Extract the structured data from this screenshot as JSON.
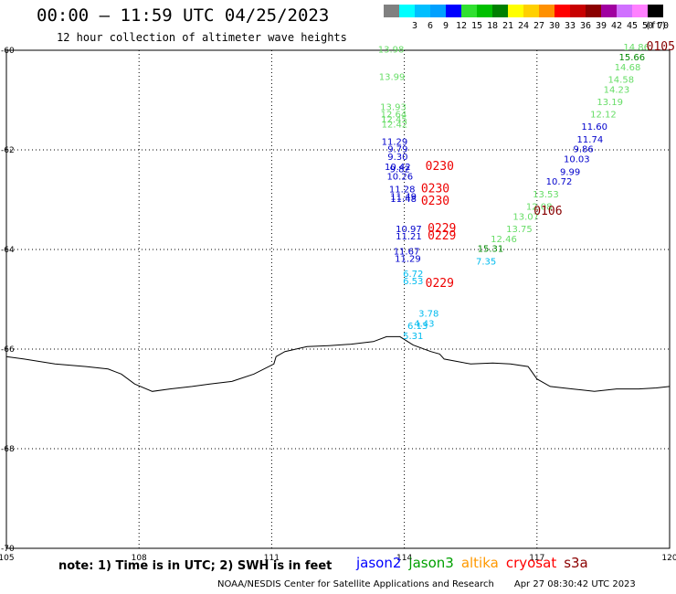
{
  "title": "00:00 – 11:59 UTC 04/25/2023",
  "subtitle": "12 hour collection of altimeter wave heights",
  "legend": {
    "unit": "(ft)",
    "bins": [
      {
        "label": "",
        "color": "#808080"
      },
      {
        "label": "3",
        "color": "#00ffff"
      },
      {
        "label": "6",
        "color": "#00bfff"
      },
      {
        "label": "9",
        "color": "#00a0ff"
      },
      {
        "label": "12",
        "color": "#0000ff"
      },
      {
        "label": "15",
        "color": "#30e030"
      },
      {
        "label": "18",
        "color": "#00c000"
      },
      {
        "label": "21",
        "color": "#008000"
      },
      {
        "label": "24",
        "color": "#ffff00"
      },
      {
        "label": "27",
        "color": "#ffd000"
      },
      {
        "label": "30",
        "color": "#ff9000"
      },
      {
        "label": "33",
        "color": "#ff0000"
      },
      {
        "label": "36",
        "color": "#c80000"
      },
      {
        "label": "39",
        "color": "#8b0000"
      },
      {
        "label": "42",
        "color": "#a000a0"
      },
      {
        "label": "45",
        "color": "#d070ff"
      },
      {
        "label": "50",
        "color": "#ff80ff"
      },
      {
        "label": "70",
        "color": "#000000"
      }
    ]
  },
  "axes": {
    "lat_labels": [
      "-60",
      "-62",
      "-64",
      "-66",
      "-68",
      "-70"
    ],
    "lon_labels": [
      "105",
      "108",
      "111",
      "114",
      "117",
      "120"
    ],
    "lat_values": [
      -60,
      -62,
      -64,
      -66,
      -68,
      -70
    ],
    "lon_values": [
      105,
      108,
      111,
      114,
      117,
      120
    ],
    "lon_range": [
      105,
      120
    ],
    "lat_range": [
      -60,
      -70
    ]
  },
  "observations": [
    {
      "text": "13.98",
      "color": "#66dd66",
      "lon": 113.7,
      "lat": -60.05
    },
    {
      "text": "13.99",
      "color": "#66dd66",
      "lon": 113.72,
      "lat": -60.6
    },
    {
      "text": "13.93",
      "color": "#66dd66",
      "lon": 113.75,
      "lat": -61.2
    },
    {
      "text": "12.64",
      "color": "#66dd66",
      "lon": 113.76,
      "lat": -61.35
    },
    {
      "text": "12.45",
      "color": "#66dd66",
      "lon": 113.77,
      "lat": -61.45
    },
    {
      "text": "12.42",
      "color": "#66dd66",
      "lon": 113.78,
      "lat": -61.55
    },
    {
      "text": "11.29",
      "color": "#0000cc",
      "lon": 113.78,
      "lat": -61.9
    },
    {
      "text": "9.79",
      "color": "#0000cc",
      "lon": 113.85,
      "lat": -62.05
    },
    {
      "text": "9.30",
      "color": "#0000cc",
      "lon": 113.85,
      "lat": -62.2
    },
    {
      "text": "10.42",
      "color": "#0000cc",
      "lon": 113.85,
      "lat": -62.4
    },
    {
      "text": "9.82",
      "color": "#0000cc",
      "lon": 113.9,
      "lat": -62.45
    },
    {
      "text": "10.26",
      "color": "#0000cc",
      "lon": 113.9,
      "lat": -62.6
    },
    {
      "text": "11.28",
      "color": "#0000cc",
      "lon": 113.95,
      "lat": -62.85
    },
    {
      "text": "11.49",
      "color": "#0000cc",
      "lon": 113.98,
      "lat": -63.0
    },
    {
      "text": "11.48",
      "color": "#0000cc",
      "lon": 113.98,
      "lat": -63.05
    },
    {
      "text": "10.97",
      "color": "#0000cc",
      "lon": 114.1,
      "lat": -63.65
    },
    {
      "text": "11.21",
      "color": "#0000cc",
      "lon": 114.1,
      "lat": -63.8
    },
    {
      "text": "11.67",
      "color": "#0000cc",
      "lon": 114.05,
      "lat": -64.1
    },
    {
      "text": "11.29",
      "color": "#0000cc",
      "lon": 114.08,
      "lat": -64.25
    },
    {
      "text": "6.72",
      "color": "#00bbee",
      "lon": 114.2,
      "lat": -64.55
    },
    {
      "text": "6.53",
      "color": "#00bbee",
      "lon": 114.2,
      "lat": -64.7
    },
    {
      "text": "3.78",
      "color": "#00bbee",
      "lon": 114.55,
      "lat": -65.35
    },
    {
      "text": "4.43",
      "color": "#00bbee",
      "lon": 114.45,
      "lat": -65.55
    },
    {
      "text": "6.13",
      "color": "#00bbee",
      "lon": 114.3,
      "lat": -65.6
    },
    {
      "text": "5.31",
      "color": "#00bbee",
      "lon": 114.2,
      "lat": -65.8
    },
    {
      "text": "14.86",
      "color": "#66dd66",
      "lon": 119.25,
      "lat": -60.0
    },
    {
      "text": "15.66",
      "color": "#008800",
      "lon": 119.15,
      "lat": -60.2
    },
    {
      "text": "14.68",
      "color": "#66dd66",
      "lon": 119.05,
      "lat": -60.4
    },
    {
      "text": "14.58",
      "color": "#66dd66",
      "lon": 118.9,
      "lat": -60.65
    },
    {
      "text": "14.23",
      "color": "#66dd66",
      "lon": 118.8,
      "lat": -60.85
    },
    {
      "text": "13.19",
      "color": "#66dd66",
      "lon": 118.65,
      "lat": -61.1
    },
    {
      "text": "12.12",
      "color": "#66dd66",
      "lon": 118.5,
      "lat": -61.35
    },
    {
      "text": "11.60",
      "color": "#0000cc",
      "lon": 118.3,
      "lat": -61.6
    },
    {
      "text": "11.74",
      "color": "#0000cc",
      "lon": 118.2,
      "lat": -61.85
    },
    {
      "text": "9.86",
      "color": "#0000cc",
      "lon": 118.05,
      "lat": -62.05
    },
    {
      "text": "10.03",
      "color": "#0000cc",
      "lon": 117.9,
      "lat": -62.25
    },
    {
      "text": "9.99",
      "color": "#0000cc",
      "lon": 117.75,
      "lat": -62.5
    },
    {
      "text": "10.72",
      "color": "#0000cc",
      "lon": 117.5,
      "lat": -62.7
    },
    {
      "text": "13.53",
      "color": "#66dd66",
      "lon": 117.2,
      "lat": -62.95
    },
    {
      "text": "12.08",
      "color": "#66dd66",
      "lon": 117.05,
      "lat": -63.2
    },
    {
      "text": "13.07",
      "color": "#66dd66",
      "lon": 116.75,
      "lat": -63.4
    },
    {
      "text": "13.75",
      "color": "#66dd66",
      "lon": 116.6,
      "lat": -63.65
    },
    {
      "text": "12.46",
      "color": "#66dd66",
      "lon": 116.25,
      "lat": -63.85
    },
    {
      "text": "15.31",
      "color": "#008800",
      "lon": 115.95,
      "lat": -64.05
    },
    {
      "text": "7.35",
      "color": "#00bbee",
      "lon": 115.85,
      "lat": -64.3
    }
  ],
  "pass_times": [
    {
      "text": "0230",
      "color": "#ee0000",
      "lon": 114.8,
      "lat": -62.4
    },
    {
      "text": "0230",
      "color": "#ee0000",
      "lon": 114.7,
      "lat": -62.85
    },
    {
      "text": "0230",
      "color": "#ee0000",
      "lon": 114.7,
      "lat": -63.1
    },
    {
      "text": "0229",
      "color": "#ee0000",
      "lon": 114.85,
      "lat": -63.65
    },
    {
      "text": "0229",
      "color": "#ee0000",
      "lon": 114.85,
      "lat": -63.8
    },
    {
      "text": "0229",
      "color": "#ee0000",
      "lon": 114.8,
      "lat": -64.75
    },
    {
      "text": "0106",
      "color": "#880000",
      "lon": 117.25,
      "lat": -63.3
    },
    {
      "text": "0105",
      "color": "#880000",
      "lon": 119.8,
      "lat": -60.0
    }
  ],
  "coastline": [
    [
      105,
      -66.15
    ],
    [
      105.4,
      -66.2
    ],
    [
      106.1,
      -66.3
    ],
    [
      106.8,
      -66.35
    ],
    [
      107.3,
      -66.4
    ],
    [
      107.6,
      -66.5
    ],
    [
      107.9,
      -66.7
    ],
    [
      108.3,
      -66.85
    ],
    [
      108.7,
      -66.8
    ],
    [
      109.2,
      -66.75
    ],
    [
      109.6,
      -66.7
    ],
    [
      110.1,
      -66.65
    ],
    [
      110.6,
      -66.5
    ],
    [
      111.05,
      -66.3
    ],
    [
      111.1,
      -66.15
    ],
    [
      111.3,
      -66.05
    ],
    [
      111.8,
      -65.95
    ],
    [
      112.3,
      -65.93
    ],
    [
      112.8,
      -65.9
    ],
    [
      113.3,
      -65.85
    ],
    [
      113.6,
      -65.75
    ],
    [
      113.9,
      -65.75
    ],
    [
      114.2,
      -65.92
    ],
    [
      114.6,
      -66.05
    ],
    [
      114.8,
      -66.1
    ],
    [
      114.9,
      -66.2
    ],
    [
      115.5,
      -66.3
    ],
    [
      116.0,
      -66.28
    ],
    [
      116.4,
      -66.3
    ],
    [
      116.8,
      -66.35
    ],
    [
      117.0,
      -66.6
    ],
    [
      117.3,
      -66.75
    ],
    [
      117.8,
      -66.8
    ],
    [
      118.3,
      -66.85
    ],
    [
      118.8,
      -66.8
    ],
    [
      119.3,
      -66.8
    ],
    [
      119.7,
      -66.78
    ],
    [
      120,
      -66.75
    ]
  ],
  "note": "note:  1) Time is in UTC;  2) SWH is in feet",
  "satellites": [
    {
      "text": "jason2",
      "color": "#0000ff"
    },
    {
      "text": "jason3",
      "color": "#00a000"
    },
    {
      "text": "altika",
      "color": "#ff9900"
    },
    {
      "text": "cryosat",
      "color": "#ff0000"
    },
    {
      "text": "s3a",
      "color": "#8b0000"
    }
  ],
  "credit": "NOAA/NESDIS Center for Satellite Applications and Research",
  "timestamp": "Apr 27 08:30:42 UTC 2023"
}
